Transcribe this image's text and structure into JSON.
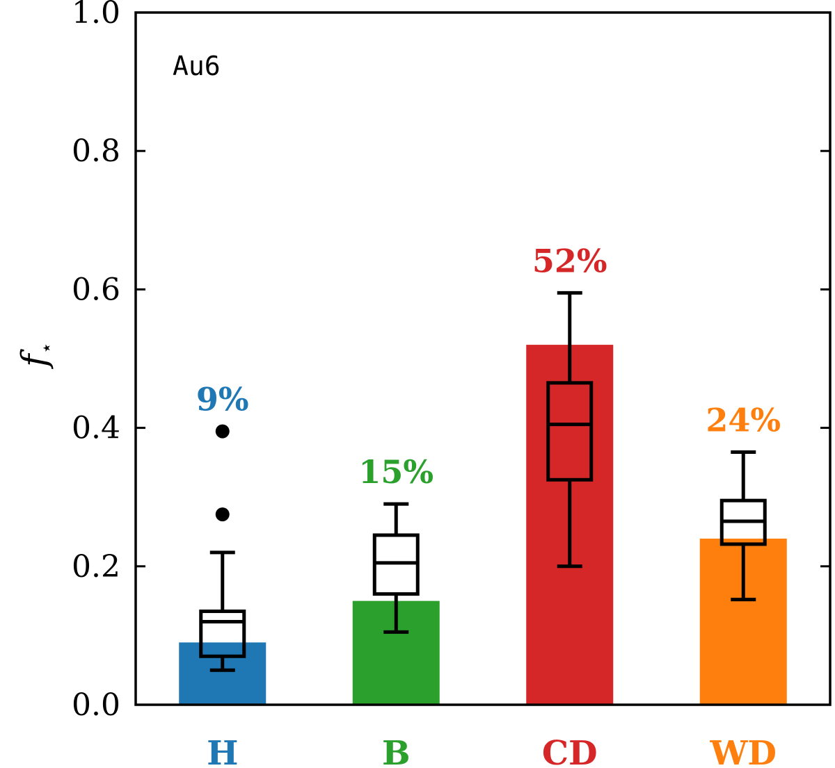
{
  "chart_data": {
    "type": "bar",
    "panel_label": "Au6",
    "ylabel": "f",
    "ylabel_subscript": "⋆",
    "xlabel": "",
    "ylim": [
      0,
      1.0
    ],
    "yticks": [
      0.0,
      0.2,
      0.4,
      0.6,
      0.8,
      1.0
    ],
    "ytick_labels": [
      "0.0",
      "0.2",
      "0.4",
      "0.6",
      "0.8",
      "1.0"
    ],
    "categories": [
      "H",
      "B",
      "CD",
      "WD"
    ],
    "values": [
      0.09,
      0.15,
      0.52,
      0.24
    ],
    "percent_labels": [
      "9%",
      "15%",
      "52%",
      "24%"
    ],
    "colors": [
      "#1f77b4",
      "#2ca02c",
      "#d62728",
      "#ff7f0e"
    ],
    "boxplots": [
      {
        "whisker_low": 0.05,
        "q1": 0.07,
        "median": 0.12,
        "q3": 0.135,
        "whisker_high": 0.22,
        "outliers": [
          0.275,
          0.395
        ]
      },
      {
        "whisker_low": 0.105,
        "q1": 0.16,
        "median": 0.205,
        "q3": 0.245,
        "whisker_high": 0.29,
        "outliers": []
      },
      {
        "whisker_low": 0.2,
        "q1": 0.325,
        "median": 0.405,
        "q3": 0.465,
        "whisker_high": 0.595,
        "outliers": []
      },
      {
        "whisker_low": 0.152,
        "q1": 0.232,
        "median": 0.265,
        "q3": 0.295,
        "whisker_high": 0.365,
        "outliers": []
      }
    ],
    "grid": false
  }
}
